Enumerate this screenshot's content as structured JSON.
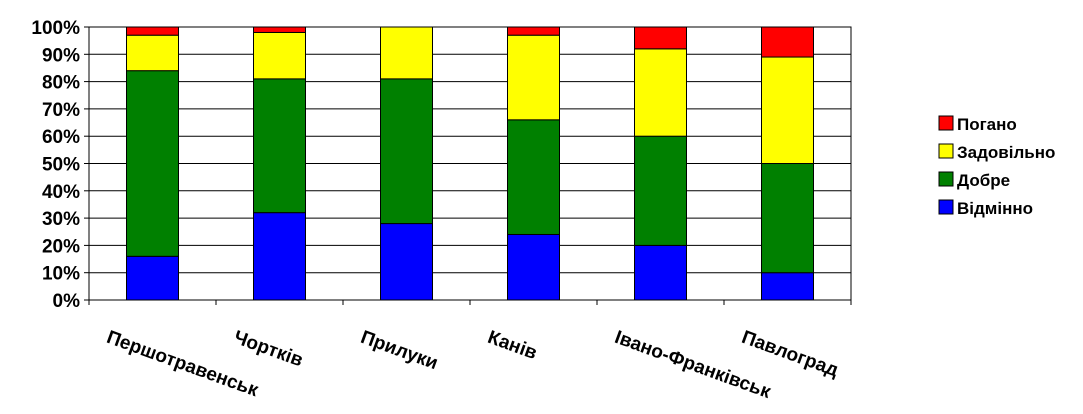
{
  "chart_data": {
    "type": "bar",
    "stacked": true,
    "percent": true,
    "categories": [
      "Першотравенськ",
      "Чортків",
      "Прилуки",
      "Канів",
      "Івано-Франківськ",
      "Павлоград"
    ],
    "series": [
      {
        "name": "Відмінно",
        "color": "#0000FF",
        "values": [
          16,
          32,
          28,
          24,
          20,
          10
        ]
      },
      {
        "name": "Добре",
        "color": "#008000",
        "values": [
          68,
          49,
          53,
          42,
          40,
          40
        ]
      },
      {
        "name": "Задовільно",
        "color": "#FFFF00",
        "values": [
          13,
          17,
          19,
          31,
          32,
          39
        ]
      },
      {
        "name": "Погано",
        "color": "#FF0000",
        "values": [
          3,
          2,
          0,
          3,
          8,
          11
        ]
      }
    ],
    "yticks": [
      "0%",
      "10%",
      "20%",
      "30%",
      "40%",
      "50%",
      "60%",
      "70%",
      "80%",
      "90%",
      "100%"
    ],
    "ylim": [
      0,
      100
    ],
    "grid": true,
    "legend_position": "right",
    "legend_order": [
      "Погано",
      "Задовільно",
      "Добре",
      "Відмінно"
    ]
  }
}
